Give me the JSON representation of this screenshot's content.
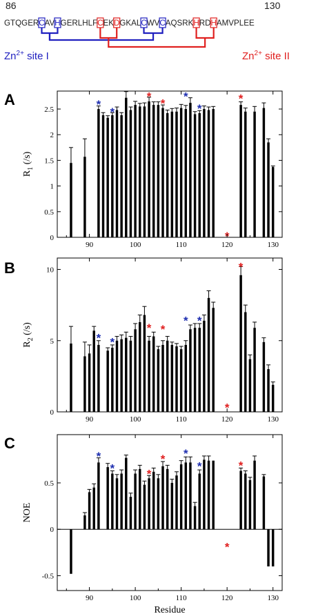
{
  "sequence": {
    "start_label": "86",
    "end_label": "130",
    "letters": [
      "G",
      "T",
      "Q",
      "G",
      "E",
      "R",
      "C",
      "A",
      "V",
      "H",
      "G",
      "E",
      "R",
      "L",
      "H",
      "L",
      "F",
      "C",
      "E",
      "K",
      "D",
      "G",
      "K",
      "A",
      "L",
      "C",
      "W",
      "V",
      "C",
      "A",
      "Q",
      "S",
      "R",
      "K",
      "H",
      "R",
      "D",
      "H",
      "A",
      "M",
      "V",
      "P",
      "L",
      "E",
      "E"
    ],
    "site1_indices": [
      6,
      9,
      25,
      28
    ],
    "site2_indices": [
      17,
      20,
      34,
      37
    ],
    "site1_label": "Zn",
    "site1_label_suffix": " site I",
    "site2_label": "Zn",
    "site2_label_suffix": " site II",
    "superscript": "2+",
    "colors": {
      "site1": "#1f1fbf",
      "site2": "#e0201f",
      "text": "#222222"
    }
  },
  "star_glyph": "*",
  "star_colors": {
    "blue": "#1f2fb0",
    "red": "#e02020"
  },
  "chart_data": [
    {
      "panel_label": "A",
      "type": "bar",
      "ylabel_main": "R",
      "ylabel_sub": "1",
      "ylabel_unit": " (/s)",
      "xlabel": "",
      "xlim": [
        83,
        132
      ],
      "ylim": [
        0,
        2.85
      ],
      "yticks": [
        0,
        0.5,
        1,
        1.5,
        2,
        2.5
      ],
      "ytick_labels": [
        "0",
        "0.5",
        "1",
        "1.5",
        "2",
        "2.5"
      ],
      "xticks": [
        90,
        100,
        110,
        120,
        130
      ],
      "xtick_labels": [
        "90",
        "100",
        "110",
        "120",
        "130"
      ],
      "x": [
        86,
        89,
        92,
        93,
        94,
        95,
        96,
        97,
        98,
        99,
        100,
        101,
        102,
        103,
        104,
        105,
        106,
        107,
        108,
        109,
        110,
        111,
        112,
        113,
        114,
        115,
        116,
        117,
        123,
        124,
        126,
        128,
        129,
        130
      ],
      "values": [
        1.45,
        1.57,
        2.5,
        2.38,
        2.33,
        2.38,
        2.48,
        2.38,
        2.72,
        2.48,
        2.58,
        2.55,
        2.55,
        2.65,
        2.58,
        2.58,
        2.52,
        2.42,
        2.45,
        2.45,
        2.52,
        2.5,
        2.62,
        2.4,
        2.42,
        2.5,
        2.48,
        2.5,
        2.58,
        2.45,
        2.45,
        2.52,
        1.85,
        1.37
      ],
      "errors": [
        0.3,
        0.35,
        0.06,
        0.05,
        0.04,
        0.05,
        0.06,
        0.05,
        0.12,
        0.06,
        0.07,
        0.06,
        0.07,
        0.08,
        0.06,
        0.06,
        0.06,
        0.06,
        0.06,
        0.07,
        0.07,
        0.07,
        0.1,
        0.05,
        0.05,
        0.06,
        0.06,
        0.05,
        0.06,
        0.07,
        0.1,
        0.1,
        0.07,
        0.02
      ],
      "stars": [
        {
          "x": 92,
          "y": 2.65,
          "color": "blue"
        },
        {
          "x": 95,
          "y": 2.5,
          "color": "blue"
        },
        {
          "x": 103,
          "y": 2.8,
          "color": "red"
        },
        {
          "x": 106,
          "y": 2.67,
          "color": "red"
        },
        {
          "x": 111,
          "y": 2.8,
          "color": "blue"
        },
        {
          "x": 114,
          "y": 2.57,
          "color": "blue"
        },
        {
          "x": 120,
          "y": 0.08,
          "color": "red"
        },
        {
          "x": 123,
          "y": 2.76,
          "color": "red"
        }
      ]
    },
    {
      "panel_label": "B",
      "type": "bar",
      "ylabel_main": "R",
      "ylabel_sub": "2",
      "ylabel_unit": " (/s)",
      "xlabel": "",
      "xlim": [
        83,
        132
      ],
      "ylim": [
        0,
        10.8
      ],
      "yticks": [
        0,
        5,
        10
      ],
      "ytick_labels": [
        "0",
        "5",
        "10"
      ],
      "xticks": [
        90,
        100,
        110,
        120,
        130
      ],
      "xtick_labels": [
        "90",
        "100",
        "110",
        "120",
        "130"
      ],
      "x": [
        86,
        89,
        90,
        91,
        92,
        94,
        95,
        96,
        97,
        98,
        99,
        100,
        101,
        102,
        103,
        104,
        105,
        106,
        107,
        108,
        109,
        110,
        111,
        112,
        113,
        114,
        115,
        116,
        117,
        123,
        124,
        125,
        126,
        128,
        129,
        130
      ],
      "values": [
        4.8,
        3.9,
        4.1,
        5.7,
        4.7,
        4.3,
        4.5,
        5.0,
        5.1,
        5.2,
        5.0,
        5.8,
        6.3,
        6.8,
        5.0,
        5.3,
        4.4,
        4.7,
        5.0,
        4.7,
        4.6,
        4.4,
        4.7,
        5.8,
        5.9,
        5.9,
        6.4,
        8.0,
        7.3,
        9.6,
        7.0,
        3.7,
        5.9,
        4.9,
        3.0,
        1.9
      ],
      "errors": [
        1.2,
        1.0,
        0.6,
        0.3,
        0.3,
        0.2,
        0.2,
        0.3,
        0.3,
        0.4,
        0.3,
        0.4,
        0.5,
        0.6,
        0.3,
        0.3,
        0.2,
        0.3,
        0.3,
        0.2,
        0.2,
        0.2,
        0.3,
        0.3,
        0.3,
        0.3,
        0.4,
        0.5,
        0.4,
        0.6,
        0.5,
        0.3,
        0.4,
        0.3,
        0.3,
        0.2
      ],
      "stars": [
        {
          "x": 92,
          "y": 5.4,
          "color": "blue"
        },
        {
          "x": 95,
          "y": 5.1,
          "color": "blue"
        },
        {
          "x": 103,
          "y": 6.1,
          "color": "red"
        },
        {
          "x": 106,
          "y": 6.0,
          "color": "red"
        },
        {
          "x": 111,
          "y": 6.6,
          "color": "blue"
        },
        {
          "x": 114,
          "y": 6.6,
          "color": "blue"
        },
        {
          "x": 120,
          "y": 0.5,
          "color": "red"
        },
        {
          "x": 123,
          "y": 10.4,
          "color": "red"
        }
      ]
    },
    {
      "panel_label": "C",
      "type": "bar",
      "ylabel_main": "NOE",
      "ylabel_sub": "",
      "ylabel_unit": "",
      "xlabel": "Residue",
      "xlim": [
        83,
        132
      ],
      "ylim": [
        -0.66,
        1.02
      ],
      "yticks": [
        -0.5,
        0,
        0.5
      ],
      "ytick_labels": [
        "-0.5",
        "0",
        "0.5"
      ],
      "xticks": [
        90,
        100,
        110,
        120,
        130
      ],
      "xtick_labels": [
        "90",
        "100",
        "110",
        "120",
        "130"
      ],
      "x": [
        86,
        89,
        90,
        91,
        92,
        94,
        95,
        96,
        97,
        98,
        99,
        100,
        101,
        102,
        103,
        104,
        105,
        106,
        107,
        108,
        109,
        110,
        111,
        112,
        113,
        114,
        115,
        116,
        117,
        123,
        124,
        125,
        126,
        128,
        129,
        130
      ],
      "values": [
        -0.48,
        0.15,
        0.4,
        0.45,
        0.72,
        0.67,
        0.6,
        0.55,
        0.6,
        0.77,
        0.35,
        0.6,
        0.65,
        0.48,
        0.55,
        0.62,
        0.55,
        0.68,
        0.65,
        0.5,
        0.58,
        0.7,
        0.72,
        0.72,
        0.25,
        0.6,
        0.75,
        0.74,
        0.74,
        0.63,
        0.6,
        0.53,
        0.74,
        0.57,
        -0.4,
        -0.4
      ],
      "errors": [
        0,
        0.03,
        0.03,
        0.04,
        0.05,
        0.04,
        0.03,
        0.04,
        0.04,
        0.03,
        0.04,
        0.04,
        0.04,
        0.04,
        0.03,
        0.04,
        0.04,
        0.05,
        0.04,
        0.04,
        0.04,
        0.04,
        0.06,
        0.06,
        0.04,
        0.04,
        0.04,
        0.05,
        0,
        0.03,
        0.03,
        0.03,
        0.05,
        0.02,
        0,
        0
      ],
      "stars": [
        {
          "x": 92,
          "y": 0.82,
          "color": "blue"
        },
        {
          "x": 95,
          "y": 0.69,
          "color": "blue"
        },
        {
          "x": 103,
          "y": 0.63,
          "color": "red"
        },
        {
          "x": 106,
          "y": 0.79,
          "color": "red"
        },
        {
          "x": 111,
          "y": 0.85,
          "color": "blue"
        },
        {
          "x": 114,
          "y": 0.71,
          "color": "blue"
        },
        {
          "x": 120,
          "y": -0.16,
          "color": "red"
        },
        {
          "x": 123,
          "y": 0.72,
          "color": "red"
        }
      ]
    }
  ]
}
